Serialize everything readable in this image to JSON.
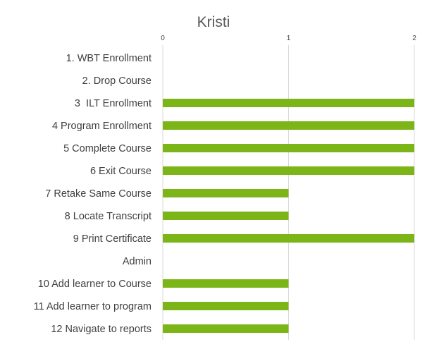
{
  "chart_data": {
    "type": "bar",
    "orientation": "horizontal",
    "title": "Kristi",
    "xlim": [
      0,
      2
    ],
    "x_ticks": [
      "0",
      "1",
      "2"
    ],
    "x_axis_position": "top",
    "grid": true,
    "legend": "none",
    "categories": [
      "1. WBT Enrollment",
      "2. Drop Course",
      "3  ILT Enrollment",
      "4 Program Enrollment",
      "5 Complete Course",
      "6 Exit Course",
      "7 Retake Same Course",
      "8 Locate Transcript",
      "9 Print Certificate",
      "Admin",
      "10 Add learner to Course",
      "11 Add learner to program",
      "12 Navigate to reports"
    ],
    "values": [
      0,
      0,
      2,
      2,
      2,
      2,
      1,
      1,
      2,
      0,
      1,
      1,
      1
    ],
    "colors": {
      "bar": "#7cb518",
      "grid": "#d9d9d9",
      "text": "#404040",
      "title": "#595959"
    }
  }
}
